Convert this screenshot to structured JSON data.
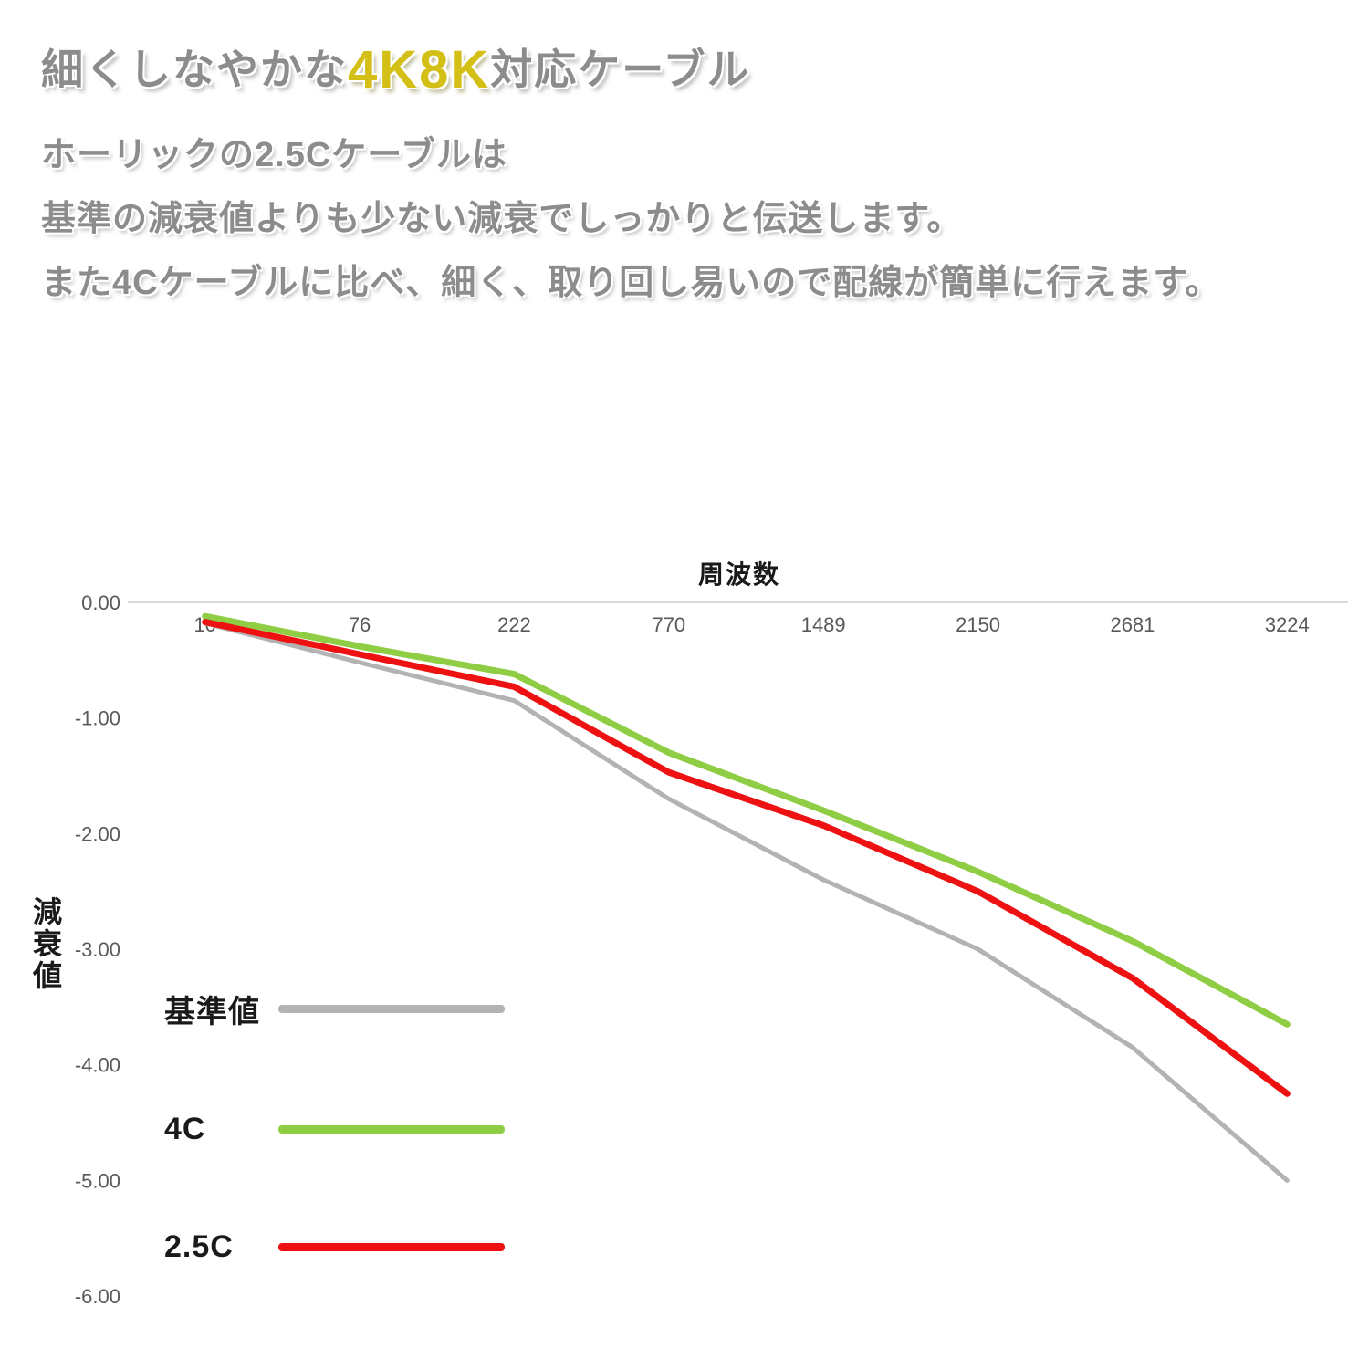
{
  "page": {
    "title_pre": "細くしなやかな",
    "title_highlight": "4K8K",
    "title_post": "対応ケーブル",
    "body_lines": [
      "ホーリックの2.5Cケーブルは",
      "基準の減衰値よりも少ない減衰でしっかりと伝送します。",
      "また4Cケーブルに比べ、細く、取り回し易いので配線が簡単に行えます。"
    ],
    "title_highlight_color": "#d3bf16",
    "title_text_color": "#8c8c8c"
  },
  "chart_data": {
    "type": "line",
    "title": "周波数",
    "xlabel": "",
    "ylabel": "減衰値",
    "categories": [
      10,
      76,
      222,
      770,
      1489,
      2150,
      2681,
      3224
    ],
    "y_ticks": [
      "0.00",
      "-1.00",
      "-2.00",
      "-3.00",
      "-4.00",
      "-5.00",
      "-6.00"
    ],
    "ylim": [
      -6,
      0
    ],
    "grid": "off",
    "legend_position": "inside-left",
    "axis_color": "#d9d9d9",
    "tick_label_color": "#595959",
    "series": [
      {
        "name": "基準値",
        "color": "#b3b3b3",
        "stroke_width": 5,
        "values": [
          -0.18,
          -0.52,
          -0.85,
          -1.7,
          -2.4,
          -3.0,
          -3.85,
          -5.0
        ]
      },
      {
        "name": "4C",
        "color": "#8fce44",
        "stroke_width": 7,
        "values": [
          -0.12,
          -0.38,
          -0.62,
          -1.3,
          -1.8,
          -2.33,
          -2.93,
          -3.65
        ]
      },
      {
        "name": "2.5C",
        "color": "#ed1111",
        "stroke_width": 7,
        "values": [
          -0.17,
          -0.45,
          -0.73,
          -1.47,
          -1.93,
          -2.5,
          -3.25,
          -4.25
        ]
      }
    ]
  }
}
